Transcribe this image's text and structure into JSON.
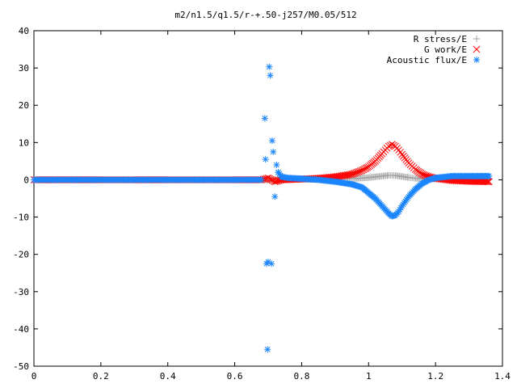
{
  "chart_data": {
    "type": "scatter",
    "title": "m2/n1.5/q1.5/r-+.50-j257/M0.05/512",
    "xlabel": "",
    "ylabel": "",
    "xlim": [
      0,
      1.4
    ],
    "ylim": [
      -50,
      40
    ],
    "x_ticks": [
      "0",
      "0.2",
      "0.4",
      "0.6",
      "0.8",
      "1",
      "1.2",
      "1.4"
    ],
    "y_ticks": [
      "40",
      "30",
      "20",
      "10",
      "0",
      "-10",
      "-20",
      "-30",
      "-40",
      "-50"
    ],
    "legend_position": "top-right",
    "grid": false,
    "series": [
      {
        "name": "R stress/E",
        "marker": "plus",
        "color": "#a0a0a0",
        "x": [
          0.0,
          0.1,
          0.2,
          0.3,
          0.4,
          0.5,
          0.6,
          0.68,
          0.72,
          0.76,
          0.8,
          0.84,
          0.88,
          0.92,
          0.96,
          1.0,
          1.02,
          1.04,
          1.06,
          1.07,
          1.08,
          1.1,
          1.12,
          1.14,
          1.16,
          1.2,
          1.25,
          1.3,
          1.36
        ],
        "y": [
          0,
          0,
          0,
          0,
          0,
          0,
          0,
          0,
          0,
          0.05,
          0.1,
          0.1,
          0.15,
          0.2,
          0.35,
          0.6,
          0.8,
          1.0,
          1.2,
          1.2,
          1.15,
          0.9,
          0.6,
          0.4,
          0.3,
          0.2,
          0.15,
          0.1,
          0.1
        ]
      },
      {
        "name": "G work/E",
        "marker": "cross",
        "color": "#ff0000",
        "x": [
          0.0,
          0.1,
          0.2,
          0.3,
          0.4,
          0.5,
          0.6,
          0.68,
          0.7,
          0.72,
          0.74,
          0.8,
          0.85,
          0.9,
          0.95,
          0.98,
          1.0,
          1.02,
          1.04,
          1.05,
          1.06,
          1.07,
          1.08,
          1.09,
          1.1,
          1.12,
          1.14,
          1.16,
          1.18,
          1.2,
          1.25,
          1.3,
          1.36
        ],
        "y": [
          0,
          0,
          0,
          0,
          0,
          0,
          0,
          0,
          0.5,
          -0.5,
          0,
          0.2,
          0.4,
          0.8,
          1.5,
          2.5,
          3.5,
          5.0,
          7.0,
          8.0,
          9.0,
          9.5,
          9.0,
          8.0,
          6.8,
          4.5,
          2.8,
          1.5,
          0.8,
          0.4,
          -0.2,
          -0.4,
          -0.5
        ]
      },
      {
        "name": "Acoustic flux/E",
        "marker": "star",
        "color": "#1a85ff",
        "x": [
          0.0,
          0.05,
          0.1,
          0.15,
          0.2,
          0.25,
          0.3,
          0.35,
          0.4,
          0.45,
          0.5,
          0.55,
          0.6,
          0.65,
          0.68,
          0.69,
          0.692,
          0.695,
          0.698,
          0.7,
          0.703,
          0.706,
          0.71,
          0.712,
          0.715,
          0.72,
          0.725,
          0.73,
          0.74,
          0.76,
          0.8,
          0.85,
          0.9,
          0.95,
          0.98,
          1.0,
          1.02,
          1.04,
          1.05,
          1.06,
          1.07,
          1.08,
          1.09,
          1.1,
          1.12,
          1.14,
          1.16,
          1.18,
          1.2,
          1.25,
          1.3,
          1.36
        ],
        "y": [
          0,
          0,
          0,
          0,
          0,
          0,
          0,
          0,
          0,
          0,
          0,
          0,
          0,
          0,
          0,
          16.5,
          5.5,
          -22.5,
          -45.5,
          -22.0,
          30.3,
          28.0,
          -22.5,
          10.5,
          7.5,
          -4.5,
          4.0,
          2.0,
          0.8,
          0.5,
          0.3,
          0.0,
          -0.5,
          -1.2,
          -2.0,
          -3.5,
          -5.0,
          -7.0,
          -8.0,
          -9.0,
          -9.8,
          -9.5,
          -8.5,
          -7.0,
          -4.5,
          -2.5,
          -1.0,
          0.0,
          0.5,
          1.0,
          1.0,
          1.0
        ]
      }
    ]
  }
}
